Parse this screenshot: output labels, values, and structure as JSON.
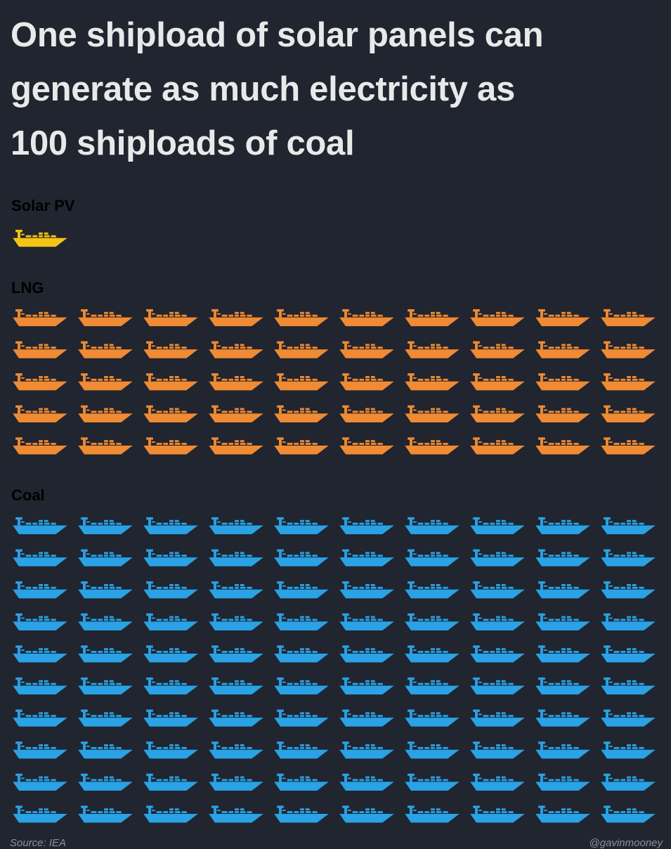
{
  "title_lines": [
    "One shipload of solar panels can",
    "generate as much electricity as",
    "100 shiploads of coal"
  ],
  "footer": {
    "source": "Source: IEA",
    "credit": "@gavinmooney"
  },
  "chart_data": {
    "type": "pictogram",
    "unit_icon": "cargo-ship-icon",
    "title": "One shipload of solar panels can generate as much electricity as 100 shiploads of coal",
    "series": [
      {
        "name": "Solar PV",
        "values": [
          1
        ],
        "color": "#f5c314",
        "columns": 10
      },
      {
        "name": "LNG",
        "values": [
          50
        ],
        "color": "#f08a33",
        "columns": 10
      },
      {
        "name": "Coal",
        "values": [
          100
        ],
        "color": "#29a2e6",
        "columns": 10
      }
    ]
  }
}
